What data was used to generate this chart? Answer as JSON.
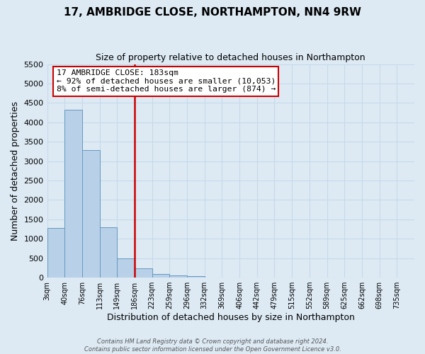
{
  "title": "17, AMBRIDGE CLOSE, NORTHAMPTON, NN4 9RW",
  "subtitle": "Size of property relative to detached houses in Northampton",
  "xlabel": "Distribution of detached houses by size in Northampton",
  "ylabel": "Number of detached properties",
  "bin_labels": [
    "3sqm",
    "40sqm",
    "76sqm",
    "113sqm",
    "149sqm",
    "186sqm",
    "223sqm",
    "259sqm",
    "296sqm",
    "332sqm",
    "369sqm",
    "406sqm",
    "442sqm",
    "479sqm",
    "515sqm",
    "552sqm",
    "589sqm",
    "625sqm",
    "662sqm",
    "698sqm",
    "735sqm"
  ],
  "bar_heights": [
    1270,
    4330,
    3290,
    1300,
    490,
    230,
    100,
    50,
    30,
    0,
    0,
    0,
    0,
    0,
    0,
    0,
    0,
    0,
    0,
    0
  ],
  "bar_color": "#b8d0e8",
  "bar_edge_color": "#6899c0",
  "vline_label": "186sqm",
  "vline_color": "#cc0000",
  "annotation_text": "17 AMBRIDGE CLOSE: 183sqm\n← 92% of detached houses are smaller (10,053)\n8% of semi-detached houses are larger (874) →",
  "annotation_box_color": "#ffffff",
  "annotation_box_edge": "#cc0000",
  "ylim": [
    0,
    5500
  ],
  "yticks": [
    0,
    500,
    1000,
    1500,
    2000,
    2500,
    3000,
    3500,
    4000,
    4500,
    5000,
    5500
  ],
  "grid_color": "#c8d8ea",
  "bg_color": "#ddeaf4",
  "footer_line1": "Contains HM Land Registry data © Crown copyright and database right 2024.",
  "footer_line2": "Contains public sector information licensed under the Open Government Licence v3.0."
}
